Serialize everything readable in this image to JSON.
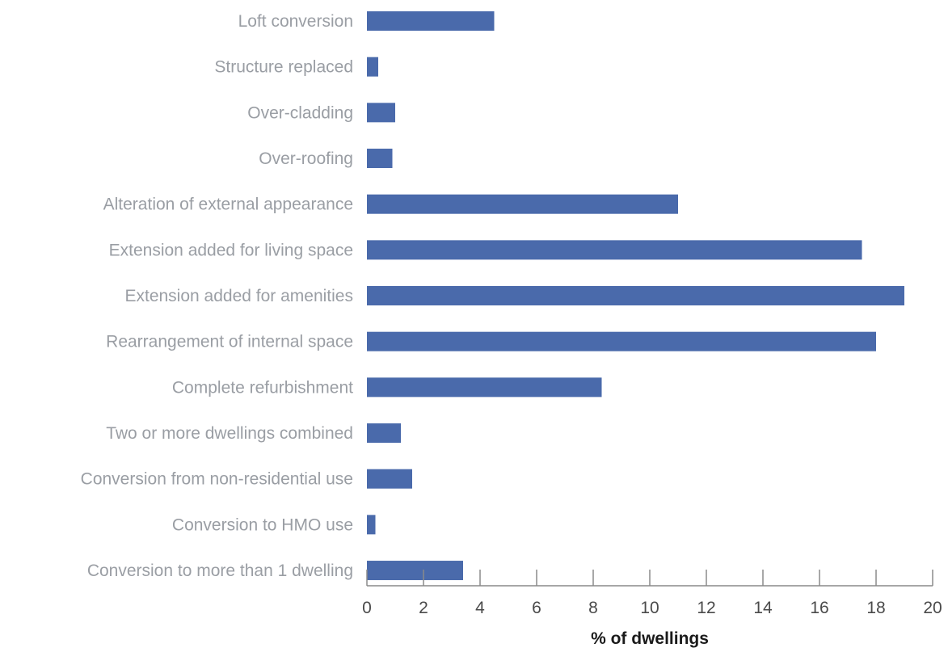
{
  "chart_data": {
    "type": "bar",
    "orientation": "horizontal",
    "categories": [
      "Loft conversion",
      "Structure replaced",
      "Over-cladding",
      "Over-roofing",
      "Alteration of external appearance",
      "Extension added for living space",
      "Extension added for amenities",
      "Rearrangement of internal space",
      "Complete refurbishment",
      "Two or more dwellings combined",
      "Conversion from non-residential use",
      "Conversion to HMO use",
      "Conversion to more than 1 dwelling"
    ],
    "values": [
      4.5,
      0.4,
      1.0,
      0.9,
      11.0,
      17.5,
      19.0,
      18.0,
      8.3,
      1.2,
      1.6,
      0.3,
      3.4
    ],
    "xlabel": "% of dwellings",
    "ylabel": "",
    "xlim": [
      0,
      20
    ],
    "xticks": [
      "0",
      "2",
      "4",
      "6",
      "8",
      "10",
      "12",
      "14",
      "16",
      "18",
      "20"
    ],
    "bar_color": "#4a6aab",
    "grid": false,
    "legend": "none"
  }
}
